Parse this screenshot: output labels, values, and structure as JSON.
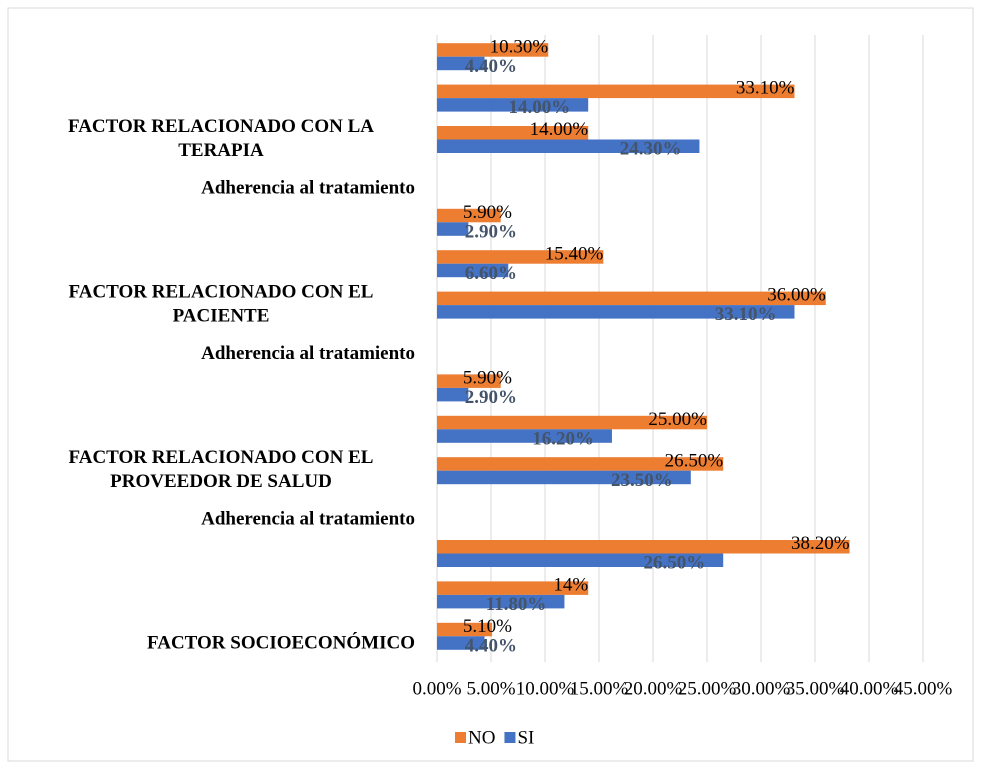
{
  "chart_data": {
    "type": "bar",
    "orientation": "horizontal",
    "categories": [
      null,
      null,
      [
        "FACTOR RELACIONADO CON LA",
        "TERAPIA"
      ],
      [
        "Adherencia al tratamiento"
      ],
      null,
      null,
      [
        "FACTOR RELACIONADO CON EL",
        "PACIENTE"
      ],
      [
        "Adherencia al tratamiento"
      ],
      null,
      null,
      [
        "FACTOR RELACIONADO CON EL",
        "PROVEEDOR DE SALUD"
      ],
      [
        "Adherencia al tratamiento"
      ],
      null,
      null,
      [
        "FACTOR SOCIOECONÓMICO"
      ]
    ],
    "series": [
      {
        "name": "NO",
        "color": "#ed7d31",
        "values": [
          10.3,
          33.1,
          14.0,
          null,
          5.9,
          15.4,
          36.0,
          null,
          5.9,
          25.0,
          26.5,
          null,
          38.2,
          14,
          5.1
        ],
        "value_labels": [
          "10.30%",
          "33.10%",
          "14.00%",
          null,
          "5.90%",
          "15.40%",
          "36.00%",
          null,
          "5.90%",
          "25.00%",
          "26.50%",
          null,
          "38.20%",
          "14%",
          "5.10%"
        ]
      },
      {
        "name": "SI",
        "color": "#4472c4",
        "values": [
          4.4,
          14.0,
          24.3,
          null,
          2.9,
          6.6,
          33.1,
          null,
          2.9,
          16.2,
          23.5,
          null,
          26.5,
          11.8,
          4.4
        ],
        "value_labels": [
          "4.40%",
          "14.00%",
          "24.30%",
          null,
          "2.90%",
          "6.60%",
          "33.10%",
          null,
          "2.90%",
          "16.20%",
          "23.50%",
          null,
          "26.50%",
          "11.80%",
          "4.40%"
        ]
      }
    ],
    "xlim": [
      0,
      45
    ],
    "xticks": [
      {
        "value": 0,
        "label": "0.00%"
      },
      {
        "value": 5,
        "label": "5.00%"
      },
      {
        "value": 10,
        "label": "10.00%"
      },
      {
        "value": 15,
        "label": "15.00%"
      },
      {
        "value": 20,
        "label": "20.00%"
      },
      {
        "value": 25,
        "label": "25.00%"
      },
      {
        "value": 30,
        "label": "30.00%"
      },
      {
        "value": 35,
        "label": "35.00%"
      },
      {
        "value": 40,
        "label": "40.00%"
      },
      {
        "value": 45,
        "label": "45.00%"
      }
    ],
    "grid": true,
    "legend": "bottom"
  }
}
